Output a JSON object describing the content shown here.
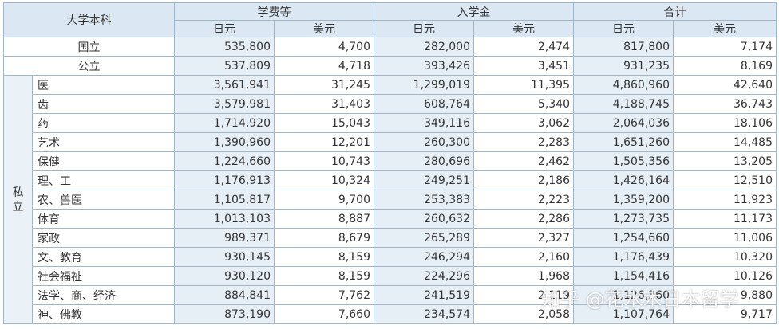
{
  "header": {
    "corner": "大学本科",
    "groups": [
      "学费等",
      "入学金",
      "合计"
    ],
    "currency_yen": "日元",
    "currency_usd": "美元"
  },
  "public_rows": [
    {
      "label": "国立",
      "values": [
        "535,800",
        "4,700",
        "282,000",
        "2,474",
        "817,800",
        "7,174"
      ]
    },
    {
      "label": "公立",
      "values": [
        "537,809",
        "4,718",
        "393,426",
        "3,451",
        "931,235",
        "8,169"
      ]
    }
  ],
  "private_label": "私立",
  "private_rows": [
    {
      "label": "医",
      "values": [
        "3,561,941",
        "31,245",
        "1,299,019",
        "11,395",
        "4,860,960",
        "42,640"
      ]
    },
    {
      "label": "齿",
      "values": [
        "3,579,981",
        "31,403",
        "608,764",
        "5,340",
        "4,188,745",
        "36,743"
      ]
    },
    {
      "label": "药",
      "values": [
        "1,714,920",
        "15,043",
        "349,116",
        "3,062",
        "2,064,036",
        "18,106"
      ]
    },
    {
      "label": "艺术",
      "values": [
        "1,390,960",
        "12,201",
        "260,300",
        "2,283",
        "1,651,260",
        "14,485"
      ]
    },
    {
      "label": "保健",
      "values": [
        "1,224,660",
        "10,743",
        "280,696",
        "2,462",
        "1,505,356",
        "13,205"
      ]
    },
    {
      "label": "理、工",
      "values": [
        "1,176,913",
        "10,324",
        "249,251",
        "2,186",
        "1,426,164",
        "12,510"
      ]
    },
    {
      "label": "农、兽医",
      "values": [
        "1,105,817",
        "9,700",
        "253,383",
        "2,223",
        "1,359,200",
        "11,923"
      ]
    },
    {
      "label": "体育",
      "values": [
        "1,013,103",
        "8,887",
        "260,632",
        "2,286",
        "1,273,735",
        "11,173"
      ]
    },
    {
      "label": "家政",
      "values": [
        "989,371",
        "8,679",
        "265,289",
        "2,327",
        "1,254,660",
        "11,006"
      ]
    },
    {
      "label": "文、教育",
      "values": [
        "930,145",
        "8,159",
        "246,294",
        "2,160",
        "1,176,439",
        "10,320"
      ]
    },
    {
      "label": "社会福祉",
      "values": [
        "930,120",
        "8,159",
        "224,296",
        "1,968",
        "1,154,416",
        "10,126"
      ]
    },
    {
      "label": "法学、商、经济",
      "values": [
        "884,841",
        "7,762",
        "241,519",
        "2,119",
        "1,126,360",
        "9,880"
      ]
    },
    {
      "label": "神、佛教",
      "values": [
        "873,190",
        "7,660",
        "234,574",
        "2,058",
        "1,107,764",
        "9,717"
      ]
    }
  ],
  "watermark": "知乎 @花水木日本留学"
}
